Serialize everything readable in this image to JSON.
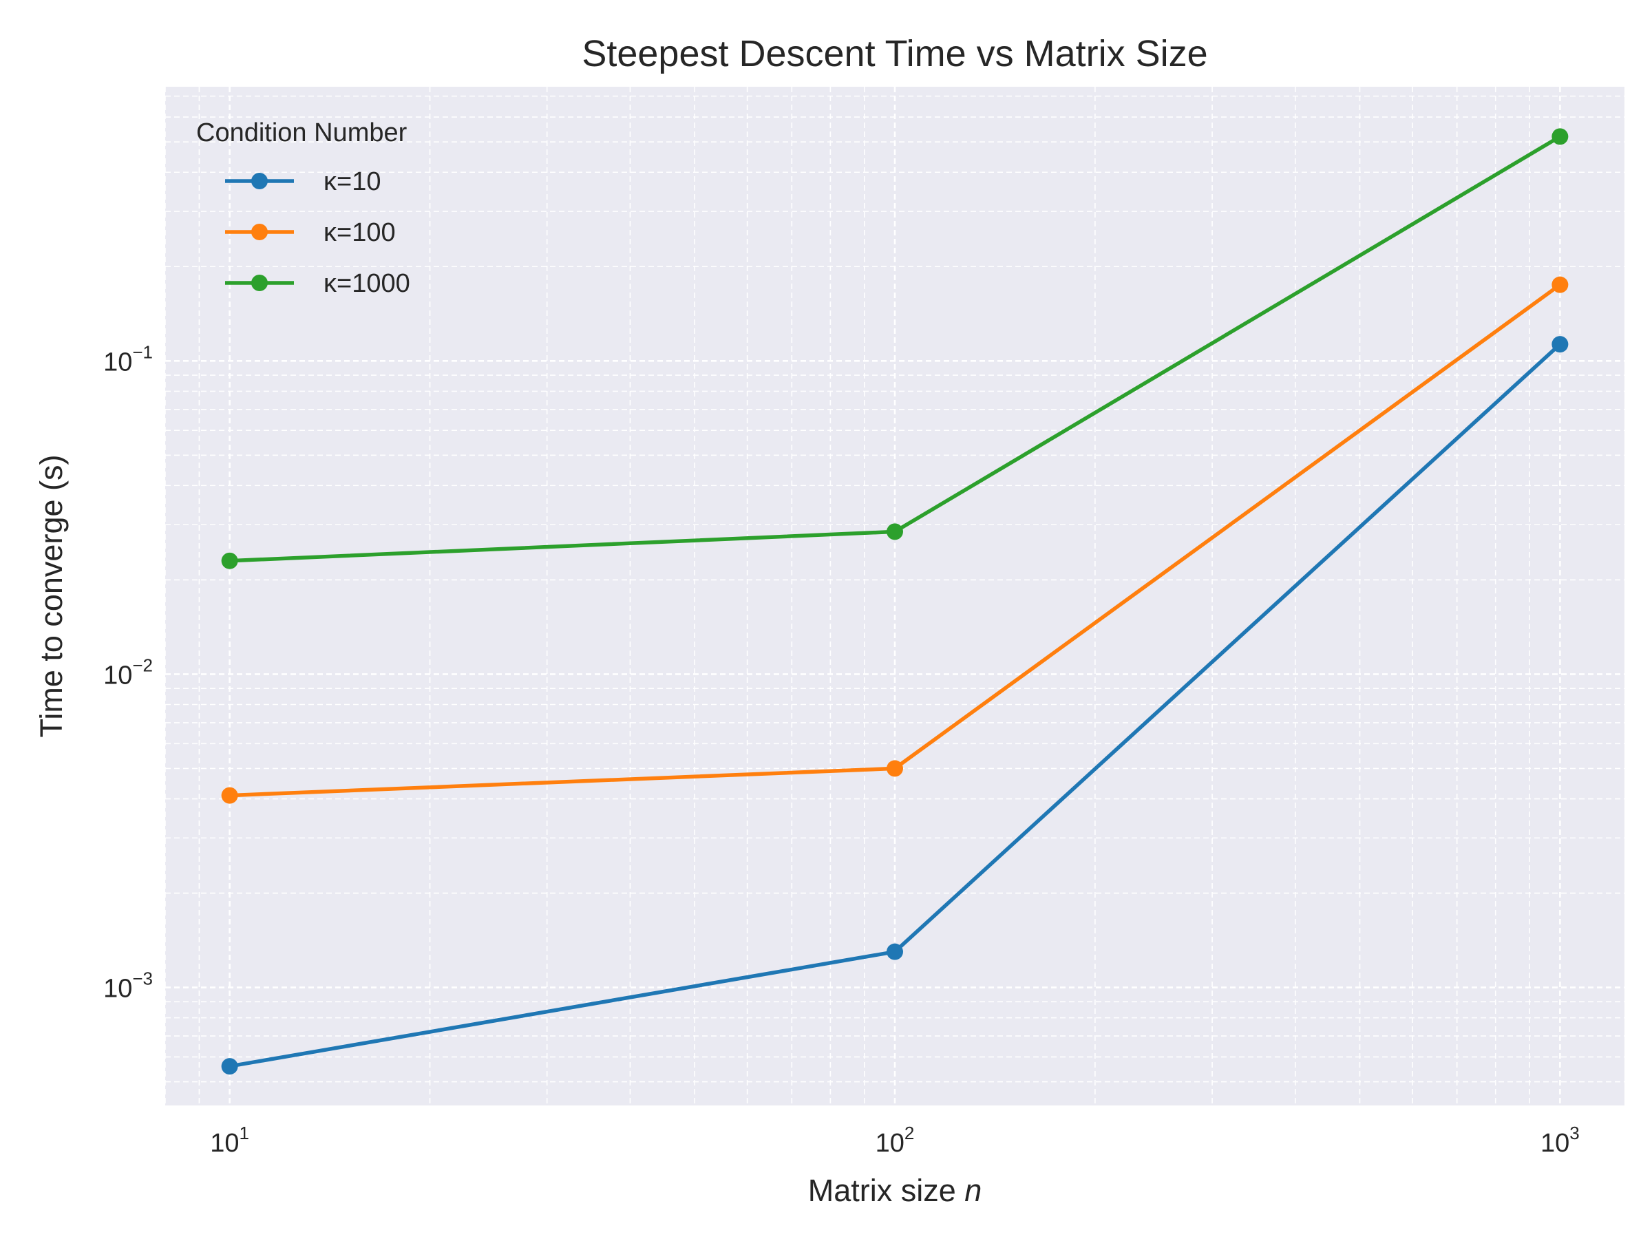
{
  "chart_data": {
    "type": "line",
    "title": "Steepest Descent Time vs Matrix Size",
    "xlabel": "Matrix size",
    "xlabel_var": "n",
    "ylabel": "Time to converge (s)",
    "xscale": "log",
    "yscale": "log",
    "xlim": [
      8,
      1250
    ],
    "ylim": [
      0.00042,
      0.75
    ],
    "x": [
      10,
      100,
      1000
    ],
    "x_ticks": [
      {
        "value": 10,
        "base": "10",
        "exp": "1"
      },
      {
        "value": 100,
        "base": "10",
        "exp": "2"
      },
      {
        "value": 1000,
        "base": "10",
        "exp": "3"
      }
    ],
    "y_ticks": [
      {
        "value": 0.001,
        "base": "10",
        "exp": "−3"
      },
      {
        "value": 0.01,
        "base": "10",
        "exp": "−2"
      },
      {
        "value": 0.1,
        "base": "10",
        "exp": "−1"
      }
    ],
    "grid": true,
    "legend": {
      "title": "Condition Number",
      "placement": "top-left"
    },
    "series": [
      {
        "name": "κ=10",
        "color": "#1f77b4",
        "values": [
          0.00056,
          0.0013,
          0.113
        ]
      },
      {
        "name": "κ=100",
        "color": "#ff7f0e",
        "values": [
          0.0041,
          0.005,
          0.175
        ]
      },
      {
        "name": "κ=1000",
        "color": "#2ca02c",
        "values": [
          0.023,
          0.0285,
          0.52
        ]
      }
    ]
  }
}
